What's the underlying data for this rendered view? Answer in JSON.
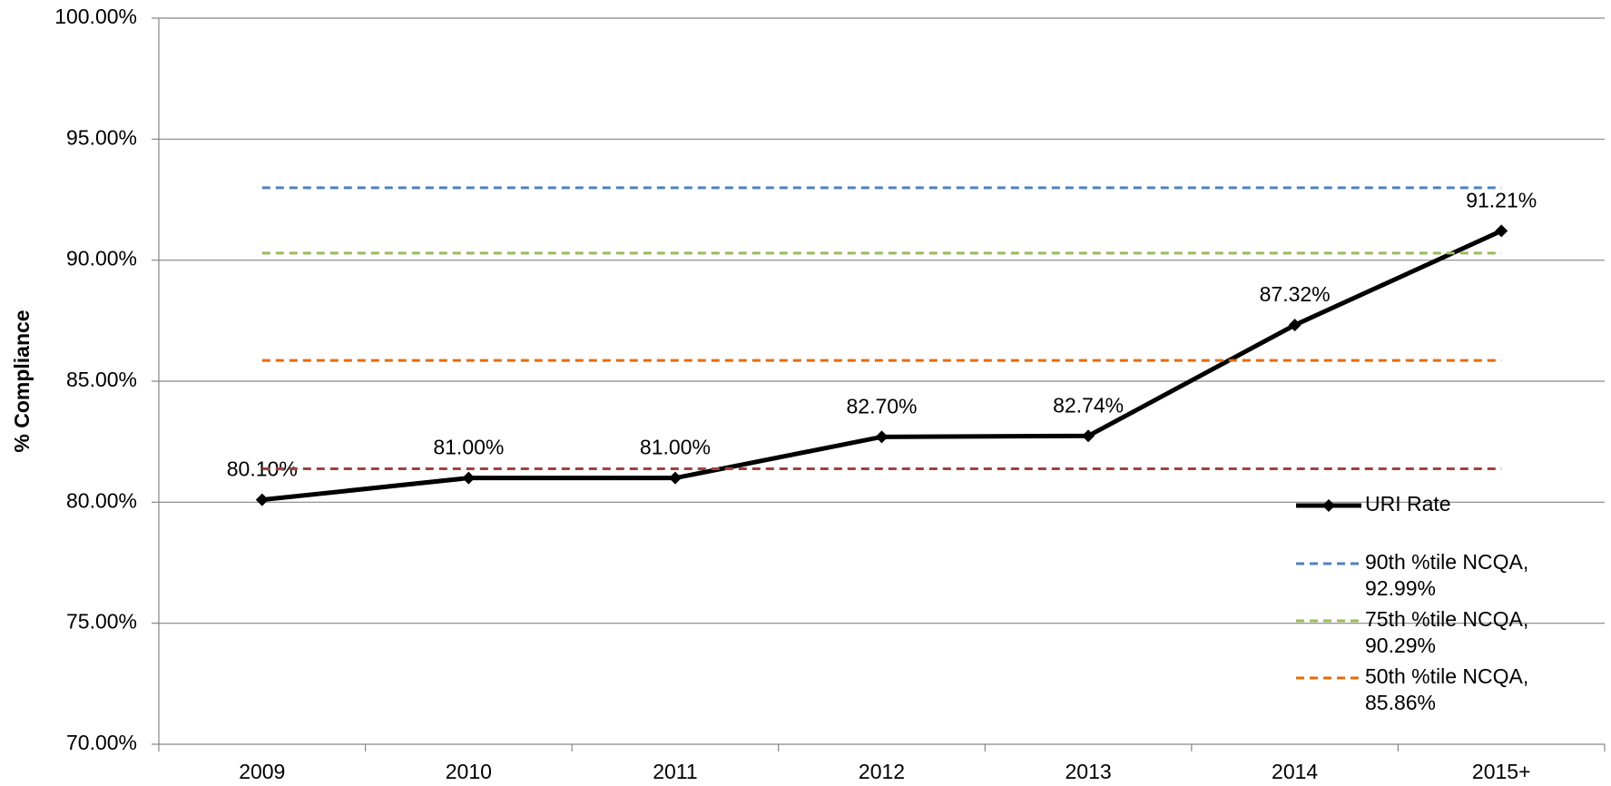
{
  "chart_data": {
    "type": "line",
    "y_label": "% Compliance",
    "categories": [
      "2009",
      "2010",
      "2011",
      "2012",
      "2013",
      "2014",
      "2015+"
    ],
    "ylim": [
      70,
      100
    ],
    "yticks": [
      {
        "value": 70,
        "label": "70.00%"
      },
      {
        "value": 75,
        "label": "75.00%"
      },
      {
        "value": 80,
        "label": "80.00%"
      },
      {
        "value": 85,
        "label": "85.00%"
      },
      {
        "value": 90,
        "label": "90.00%"
      },
      {
        "value": 95,
        "label": "95.00%"
      },
      {
        "value": 100,
        "label": "100.00%"
      }
    ],
    "grid": true,
    "series": [
      {
        "name": "URI Rate",
        "color": "#000000",
        "style": "solid",
        "marker": "diamond",
        "values": [
          80.1,
          81.0,
          81.0,
          82.7,
          82.74,
          87.32,
          91.21
        ],
        "value_labels": [
          "80.10%",
          "81.00%",
          "81.00%",
          "82.70%",
          "82.74%",
          "87.32%",
          "91.21%"
        ]
      },
      {
        "name": "90th %tile NCQA, 92.99%",
        "color": "#4f81bd",
        "style": "dashed",
        "values": [
          92.99,
          92.99,
          92.99,
          92.99,
          92.99,
          92.99,
          92.99
        ]
      },
      {
        "name": "75th %tile NCQA, 90.29%",
        "color": "#9bbb59",
        "style": "dashed",
        "values": [
          90.29,
          90.29,
          90.29,
          90.29,
          90.29,
          90.29,
          90.29
        ]
      },
      {
        "name": "50th %tile NCQA, 85.86%",
        "color": "#e46c0a",
        "style": "dashed",
        "values": [
          85.86,
          85.86,
          85.86,
          85.86,
          85.86,
          85.86,
          85.86
        ]
      },
      {
        "color": "#a0413f",
        "style": "dashed",
        "values": [
          81.38,
          81.38,
          81.38,
          81.38,
          81.38,
          81.38,
          81.38
        ]
      }
    ]
  }
}
